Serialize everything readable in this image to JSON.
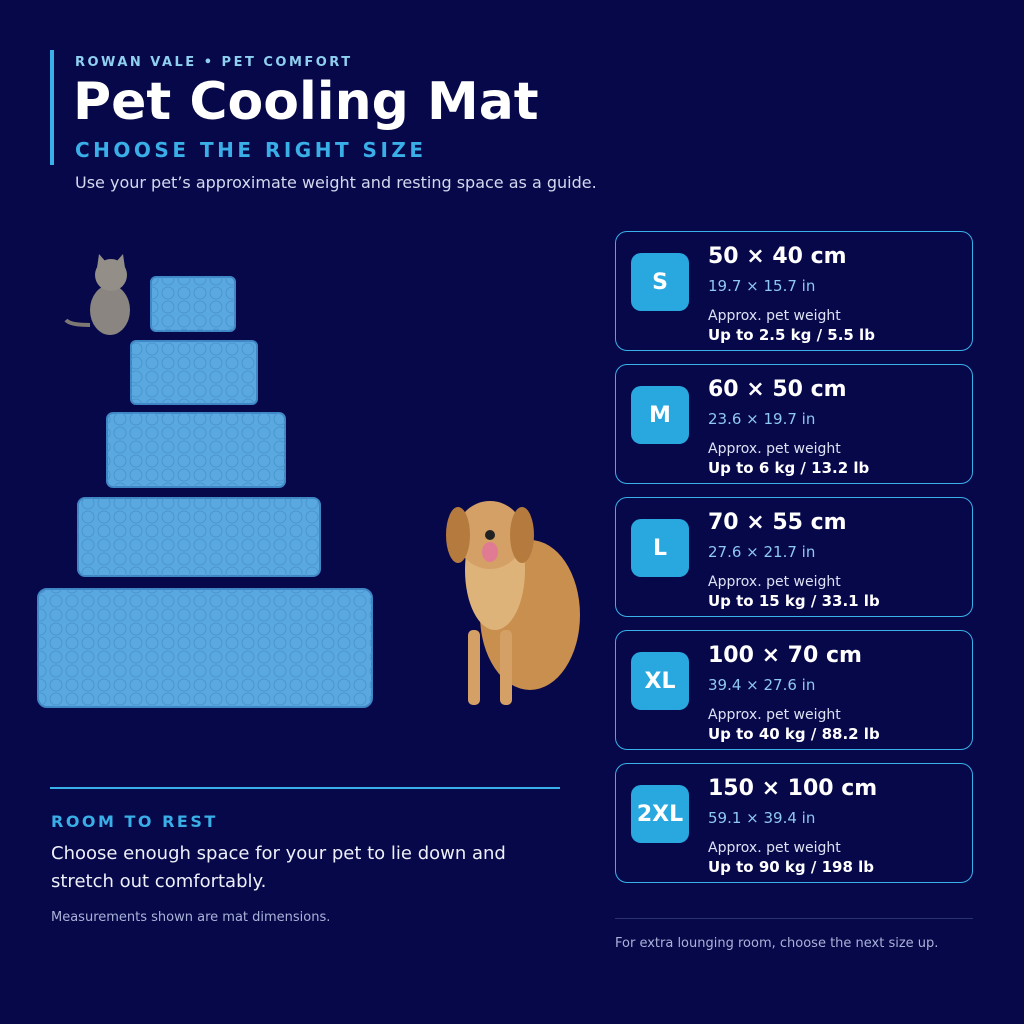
{
  "header": {
    "brand": "ROWAN VALE • PET COMFORT",
    "title": "Pet Cooling Mat",
    "subtitle": "CHOOSE THE RIGHT SIZE",
    "description": "Use your pet’s approximate weight and resting space as a guide."
  },
  "sizes": [
    {
      "label": "S",
      "dimensions": "50 × 40 cm",
      "inches": "19.7 × 15.7 in",
      "weight_label": "Approx. pet weight",
      "weight": "Up to 2.5 kg / 5.5 lb"
    },
    {
      "label": "M",
      "dimensions": "60 × 50 cm",
      "inches": "23.6 × 19.7 in",
      "weight_label": "Approx. pet weight",
      "weight": "Up to 6 kg / 13.2 lb"
    },
    {
      "label": "L",
      "dimensions": "70 × 55 cm",
      "inches": "27.6 × 21.7 in",
      "weight_label": "Approx. pet weight",
      "weight": "Up to 15 kg / 33.1 lb"
    },
    {
      "label": "XL",
      "dimensions": "100 × 70 cm",
      "inches": "39.4 × 27.6 in",
      "weight_label": "Approx. pet weight",
      "weight": "Up to 40 kg / 88.2 lb"
    },
    {
      "label": "2XL",
      "dimensions": "150 × 100 cm",
      "inches": "59.1 × 39.4 in",
      "weight_label": "Approx. pet weight",
      "weight": "Up to 90 kg / 198 lb"
    }
  ],
  "rest": {
    "heading": "ROOM TO REST",
    "body": "Choose enough space for your pet to lie down and stretch out comfortably.",
    "note": "Measurements shown are mat dimensions."
  },
  "footer_note": "For extra lounging room, choose the next size up."
}
